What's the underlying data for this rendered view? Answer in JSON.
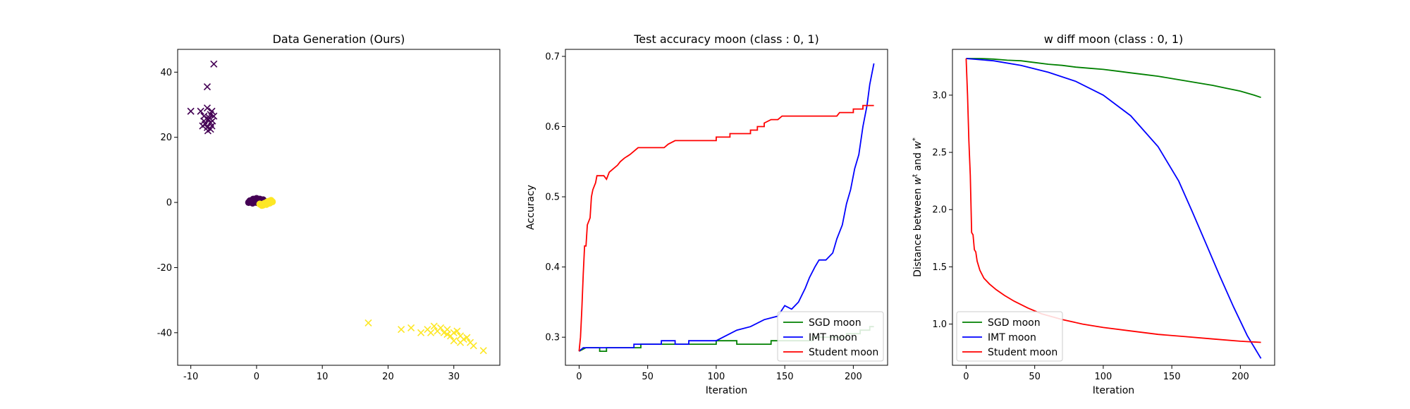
{
  "chart_data": [
    {
      "type": "scatter",
      "title": "Data Generation (Ours)",
      "xlabel": "",
      "ylabel": "",
      "xlim": [
        -12,
        37
      ],
      "ylim": [
        -50,
        47
      ],
      "xticks": [
        -10,
        0,
        10,
        20,
        30
      ],
      "yticks": [
        -40,
        -20,
        0,
        20,
        40
      ],
      "colors": {
        "class0": "#440154",
        "class1": "#fde725"
      },
      "series": [
        {
          "marker": "x",
          "color": "#440154",
          "points": [
            [
              -6.5,
              42.5
            ],
            [
              -7.5,
              35.5
            ],
            [
              -10,
              28
            ],
            [
              -8.5,
              28
            ],
            [
              -7.5,
              29
            ],
            [
              -6.8,
              28
            ],
            [
              -7,
              27
            ],
            [
              -8,
              26.5
            ],
            [
              -6.5,
              26.5
            ],
            [
              -7.3,
              25.5
            ],
            [
              -8,
              25
            ],
            [
              -7,
              24.5
            ],
            [
              -6.8,
              23.5
            ],
            [
              -7.5,
              23
            ],
            [
              -7,
              22.5
            ],
            [
              -7.8,
              24
            ],
            [
              -6.7,
              25
            ],
            [
              -7.2,
              26
            ],
            [
              -8.2,
              23.5
            ],
            [
              -7.4,
              22
            ]
          ]
        },
        {
          "marker": "x",
          "color": "#fde725",
          "points": [
            [
              17,
              -37
            ],
            [
              22,
              -39
            ],
            [
              23.5,
              -38.5
            ],
            [
              25,
              -40
            ],
            [
              26,
              -39
            ],
            [
              27,
              -38
            ],
            [
              27.5,
              -39.5
            ],
            [
              28,
              -38.5
            ],
            [
              28.5,
              -40
            ],
            [
              29,
              -39
            ],
            [
              29.5,
              -41
            ],
            [
              30,
              -40
            ],
            [
              30.5,
              -39.5
            ],
            [
              31,
              -41
            ],
            [
              31.5,
              -42
            ],
            [
              32,
              -41.5
            ],
            [
              30,
              -42.5
            ],
            [
              31,
              -43
            ],
            [
              32.5,
              -43
            ],
            [
              33,
              -44
            ],
            [
              34.5,
              -45.5
            ],
            [
              29,
              -40.5
            ],
            [
              26.5,
              -40
            ]
          ]
        },
        {
          "marker": "o",
          "color": "#440154",
          "points": [
            [
              -1,
              0.5
            ],
            [
              -0.5,
              1
            ],
            [
              0,
              1.2
            ],
            [
              0.5,
              1
            ],
            [
              1,
              0.8
            ],
            [
              -1.2,
              0
            ],
            [
              -0.8,
              0.3
            ],
            [
              0.3,
              0.5
            ],
            [
              -0.3,
              0.2
            ],
            [
              0.8,
              0.4
            ],
            [
              1.3,
              0.2
            ],
            [
              -0.6,
              -0.2
            ],
            [
              0,
              0
            ],
            [
              0.6,
              0.1
            ]
          ]
        },
        {
          "marker": "o",
          "color": "#fde725",
          "points": [
            [
              0.5,
              -0.5
            ],
            [
              1,
              -0.8
            ],
            [
              1.5,
              -0.6
            ],
            [
              2,
              -0.2
            ],
            [
              1.8,
              0.3
            ],
            [
              2.2,
              0.6
            ],
            [
              1.2,
              -0.3
            ],
            [
              0.8,
              -0.9
            ],
            [
              1.6,
              0.1
            ],
            [
              2.4,
              0.2
            ]
          ]
        }
      ]
    },
    {
      "type": "line",
      "title": "Test accuracy moon (class : 0, 1)",
      "xlabel": "Iteration",
      "ylabel": "Accuracy",
      "xlim": [
        -10,
        225
      ],
      "ylim": [
        0.26,
        0.71
      ],
      "xticks": [
        0,
        50,
        100,
        150,
        200
      ],
      "yticks": [
        0.3,
        0.4,
        0.5,
        0.6,
        0.7
      ],
      "legend": "lower-right",
      "series": [
        {
          "name": "SGD moon",
          "color": "#008000",
          "points": [
            [
              0,
              0.28
            ],
            [
              5,
              0.285
            ],
            [
              15,
              0.285
            ],
            [
              15,
              0.28
            ],
            [
              20,
              0.28
            ],
            [
              20,
              0.285
            ],
            [
              45,
              0.285
            ],
            [
              45,
              0.29
            ],
            [
              100,
              0.29
            ],
            [
              100,
              0.295
            ],
            [
              115,
              0.295
            ],
            [
              115,
              0.29
            ],
            [
              140,
              0.29
            ],
            [
              140,
              0.295
            ],
            [
              170,
              0.295
            ],
            [
              170,
              0.3
            ],
            [
              195,
              0.3
            ],
            [
              195,
              0.305
            ],
            [
              205,
              0.305
            ],
            [
              205,
              0.31
            ],
            [
              212,
              0.31
            ],
            [
              212,
              0.315
            ],
            [
              215,
              0.315
            ]
          ]
        },
        {
          "name": "IMT moon",
          "color": "#0000ff",
          "points": [
            [
              0,
              0.28
            ],
            [
              3,
              0.285
            ],
            [
              40,
              0.285
            ],
            [
              40,
              0.29
            ],
            [
              60,
              0.29
            ],
            [
              60,
              0.295
            ],
            [
              70,
              0.295
            ],
            [
              70,
              0.29
            ],
            [
              80,
              0.29
            ],
            [
              80,
              0.295
            ],
            [
              100,
              0.295
            ],
            [
              105,
              0.3
            ],
            [
              115,
              0.31
            ],
            [
              125,
              0.315
            ],
            [
              135,
              0.325
            ],
            [
              145,
              0.33
            ],
            [
              150,
              0.345
            ],
            [
              155,
              0.34
            ],
            [
              160,
              0.35
            ],
            [
              165,
              0.37
            ],
            [
              168,
              0.385
            ],
            [
              172,
              0.4
            ],
            [
              175,
              0.41
            ],
            [
              180,
              0.41
            ],
            [
              185,
              0.42
            ],
            [
              188,
              0.44
            ],
            [
              192,
              0.46
            ],
            [
              195,
              0.49
            ],
            [
              198,
              0.51
            ],
            [
              201,
              0.54
            ],
            [
              204,
              0.56
            ],
            [
              207,
              0.6
            ],
            [
              210,
              0.63
            ],
            [
              212,
              0.66
            ],
            [
              214,
              0.68
            ],
            [
              215,
              0.69
            ]
          ]
        },
        {
          "name": "Student moon",
          "color": "#ff0000",
          "points": [
            [
              0,
              0.28
            ],
            [
              1,
              0.3
            ],
            [
              2,
              0.34
            ],
            [
              3,
              0.39
            ],
            [
              4,
              0.43
            ],
            [
              5,
              0.43
            ],
            [
              6,
              0.46
            ],
            [
              8,
              0.47
            ],
            [
              9,
              0.5
            ],
            [
              10,
              0.51
            ],
            [
              12,
              0.52
            ],
            [
              13,
              0.53
            ],
            [
              18,
              0.53
            ],
            [
              20,
              0.525
            ],
            [
              22,
              0.535
            ],
            [
              25,
              0.54
            ],
            [
              28,
              0.545
            ],
            [
              30,
              0.55
            ],
            [
              33,
              0.555
            ],
            [
              37,
              0.56
            ],
            [
              40,
              0.565
            ],
            [
              43,
              0.57
            ],
            [
              62,
              0.57
            ],
            [
              65,
              0.575
            ],
            [
              70,
              0.58
            ],
            [
              100,
              0.58
            ],
            [
              100,
              0.585
            ],
            [
              110,
              0.585
            ],
            [
              110,
              0.59
            ],
            [
              125,
              0.59
            ],
            [
              125,
              0.595
            ],
            [
              130,
              0.595
            ],
            [
              130,
              0.6
            ],
            [
              135,
              0.6
            ],
            [
              135,
              0.605
            ],
            [
              140,
              0.61
            ],
            [
              145,
              0.61
            ],
            [
              148,
              0.615
            ],
            [
              188,
              0.615
            ],
            [
              190,
              0.62
            ],
            [
              200,
              0.62
            ],
            [
              200,
              0.625
            ],
            [
              207,
              0.625
            ],
            [
              207,
              0.63
            ],
            [
              215,
              0.63
            ]
          ]
        }
      ]
    },
    {
      "type": "line",
      "title": "w diff moon (class : 0, 1)",
      "xlabel": "Iteration",
      "ylabel": "Distance between w^t and w^*",
      "ylabel_main": "Distance between ",
      "ylabel_w": "w",
      "ylabel_sup_t": "t",
      "ylabel_and": " and ",
      "ylabel_sup_star": "*",
      "xlim": [
        -10,
        225
      ],
      "ylim": [
        0.64,
        3.4
      ],
      "xticks": [
        0,
        50,
        100,
        150,
        200
      ],
      "yticks": [
        1.0,
        1.5,
        2.0,
        2.5,
        3.0
      ],
      "legend": "lower-left",
      "series": [
        {
          "name": "SGD moon",
          "color": "#008000",
          "points": [
            [
              0,
              3.32
            ],
            [
              10,
              3.32
            ],
            [
              20,
              3.315
            ],
            [
              30,
              3.305
            ],
            [
              40,
              3.3
            ],
            [
              50,
              3.285
            ],
            [
              60,
              3.27
            ],
            [
              70,
              3.26
            ],
            [
              80,
              3.245
            ],
            [
              90,
              3.235
            ],
            [
              100,
              3.225
            ],
            [
              110,
              3.21
            ],
            [
              120,
              3.195
            ],
            [
              130,
              3.18
            ],
            [
              140,
              3.165
            ],
            [
              150,
              3.145
            ],
            [
              160,
              3.125
            ],
            [
              170,
              3.105
            ],
            [
              180,
              3.085
            ],
            [
              190,
              3.06
            ],
            [
              200,
              3.035
            ],
            [
              210,
              3.0
            ],
            [
              215,
              2.98
            ]
          ]
        },
        {
          "name": "IMT moon",
          "color": "#0000ff",
          "points": [
            [
              0,
              3.32
            ],
            [
              20,
              3.3
            ],
            [
              40,
              3.26
            ],
            [
              60,
              3.2
            ],
            [
              80,
              3.12
            ],
            [
              100,
              3.0
            ],
            [
              120,
              2.82
            ],
            [
              140,
              2.55
            ],
            [
              155,
              2.25
            ],
            [
              165,
              1.98
            ],
            [
              175,
              1.7
            ],
            [
              185,
              1.42
            ],
            [
              195,
              1.15
            ],
            [
              205,
              0.9
            ],
            [
              210,
              0.8
            ],
            [
              215,
              0.7
            ]
          ]
        },
        {
          "name": "Student moon",
          "color": "#ff0000",
          "points": [
            [
              0,
              3.32
            ],
            [
              1,
              3.0
            ],
            [
              2,
              2.6
            ],
            [
              3,
              2.3
            ],
            [
              4,
              1.8
            ],
            [
              5,
              1.78
            ],
            [
              6,
              1.65
            ],
            [
              7,
              1.63
            ],
            [
              8,
              1.55
            ],
            [
              10,
              1.47
            ],
            [
              13,
              1.4
            ],
            [
              17,
              1.35
            ],
            [
              22,
              1.3
            ],
            [
              28,
              1.25
            ],
            [
              35,
              1.2
            ],
            [
              45,
              1.14
            ],
            [
              55,
              1.09
            ],
            [
              70,
              1.04
            ],
            [
              85,
              1.0
            ],
            [
              100,
              0.97
            ],
            [
              120,
              0.94
            ],
            [
              140,
              0.91
            ],
            [
              160,
              0.89
            ],
            [
              180,
              0.87
            ],
            [
              200,
              0.85
            ],
            [
              215,
              0.84
            ]
          ]
        }
      ]
    }
  ]
}
